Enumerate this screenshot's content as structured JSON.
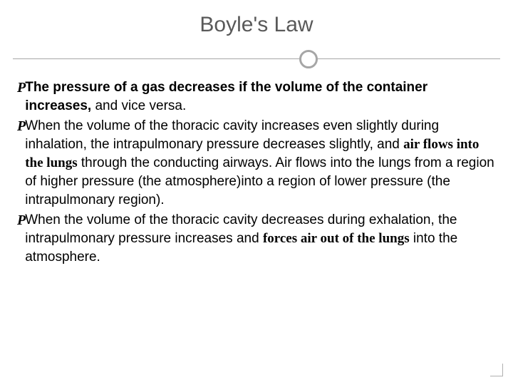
{
  "title": "Boyle's Law",
  "bullet_glyph": "P",
  "bullets": [
    {
      "runs": [
        {
          "text": "The ",
          "style": "bold"
        },
        {
          "text": "pressure of a gas decreases if the volume of the container increases,",
          "style": "bold"
        },
        {
          "text": " and vice versa.",
          "style": ""
        }
      ]
    },
    {
      "runs": [
        {
          "text": "When the volume of the thoracic cavity increases even slightly during inhalation, the intrapulmonary pressure decreases slightly, and ",
          "style": ""
        },
        {
          "text": "air flows into the lungs",
          "style": "serif-bold"
        },
        {
          "text": " through the conducting airways. Air flows into the lungs from a region of higher pressure (the atmosphere)into a region of lower pressure (the intrapulmonary region).",
          "style": ""
        }
      ]
    },
    {
      "runs": [
        {
          "text": "When the volume of the thoracic cavity decreases during exhalation, the intrapulmonary pressure increases and ",
          "style": ""
        },
        {
          "text": "forces air out of the lungs",
          "style": "serif-bold"
        },
        {
          "text": " into the atmosphere.",
          "style": ""
        }
      ]
    }
  ],
  "colors": {
    "title": "#595959",
    "rule": "#a6a6a6",
    "text": "#000000",
    "background": "#ffffff"
  },
  "fontsizes": {
    "title_pt": 30,
    "body_pt": 19
  }
}
